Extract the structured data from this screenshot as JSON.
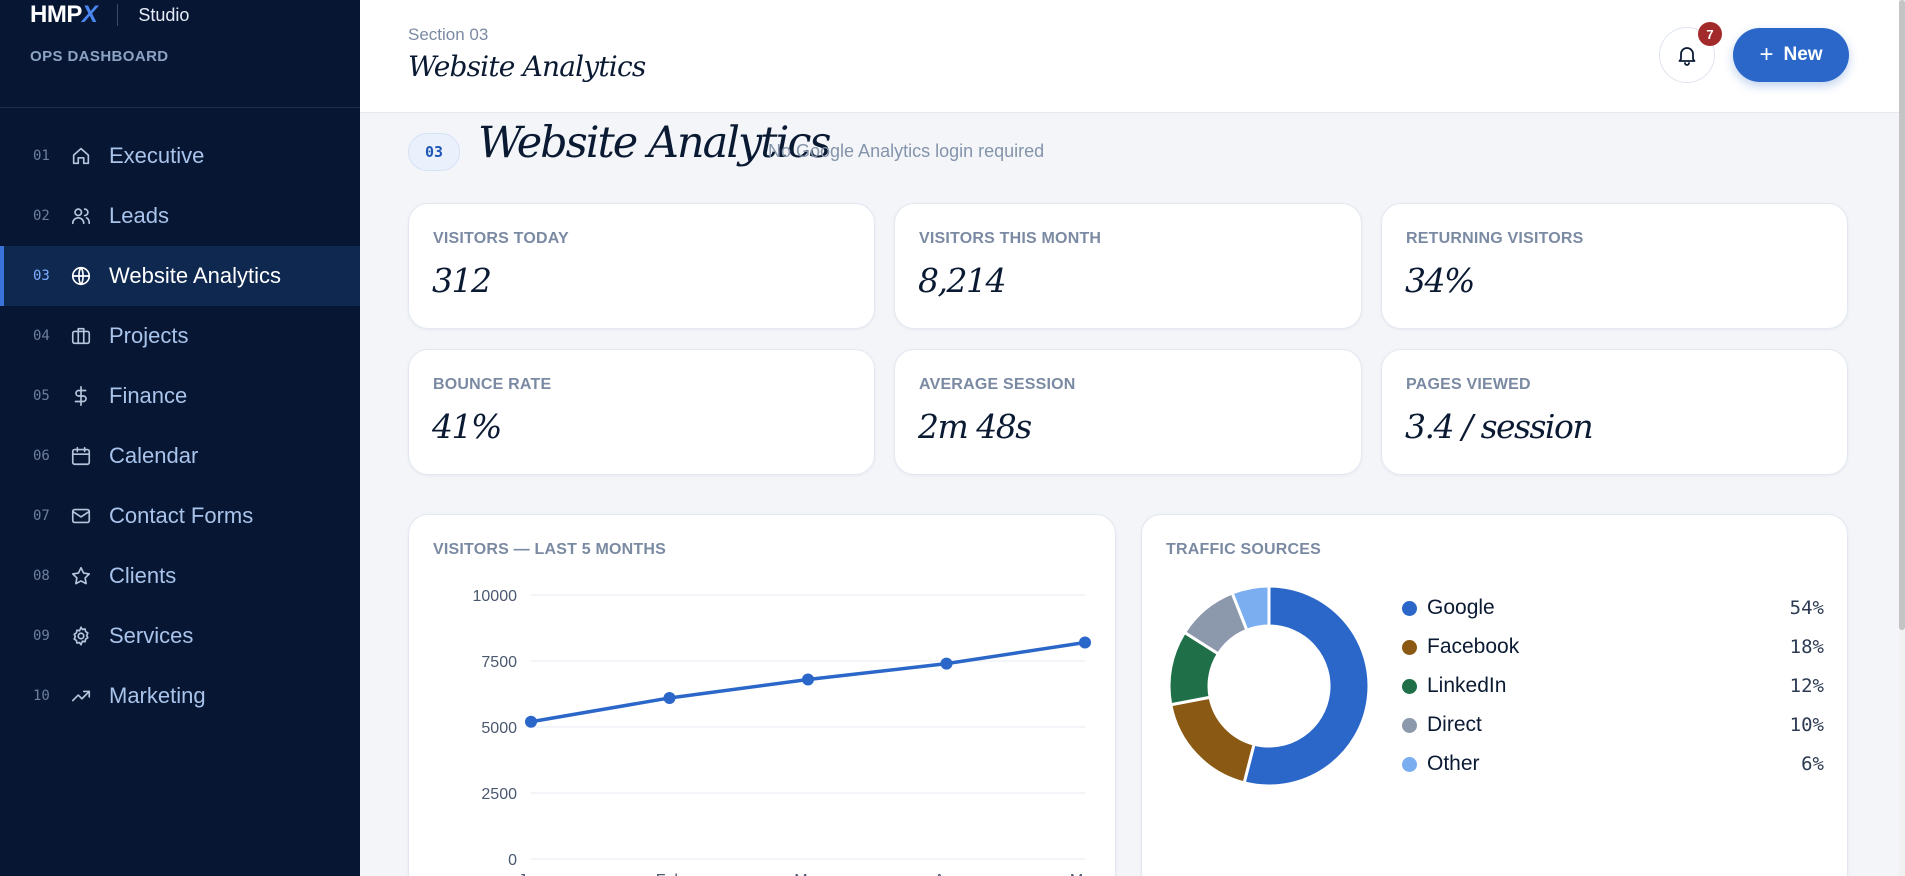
{
  "brand": {
    "logo_main": "HMP",
    "logo_x": "X",
    "studio": "Studio",
    "subtitle": "OPS DASHBOARD"
  },
  "nav": [
    {
      "num": "01",
      "label": "Executive",
      "icon": "home-icon",
      "active": false
    },
    {
      "num": "02",
      "label": "Leads",
      "icon": "users-icon",
      "active": false
    },
    {
      "num": "03",
      "label": "Website Analytics",
      "icon": "globe-icon",
      "active": true
    },
    {
      "num": "04",
      "label": "Projects",
      "icon": "briefcase-icon",
      "active": false
    },
    {
      "num": "05",
      "label": "Finance",
      "icon": "dollar-icon",
      "active": false
    },
    {
      "num": "06",
      "label": "Calendar",
      "icon": "calendar-icon",
      "active": false
    },
    {
      "num": "07",
      "label": "Contact Forms",
      "icon": "mail-icon",
      "active": false
    },
    {
      "num": "08",
      "label": "Clients",
      "icon": "star-icon",
      "active": false
    },
    {
      "num": "09",
      "label": "Services",
      "icon": "gear-icon",
      "active": false
    },
    {
      "num": "10",
      "label": "Marketing",
      "icon": "trending-icon",
      "active": false
    }
  ],
  "topbar": {
    "section": "Section 03",
    "title": "Website Analytics",
    "notifications": "7",
    "new_label": "New"
  },
  "page": {
    "badge": "03",
    "title": "Website Analytics",
    "subtitle": "No Google Analytics login required"
  },
  "stats": [
    {
      "label": "VISITORS TODAY",
      "value": "312"
    },
    {
      "label": "VISITORS THIS MONTH",
      "value": "8,214"
    },
    {
      "label": "RETURNING VISITORS",
      "value": "34%"
    },
    {
      "label": "BOUNCE RATE",
      "value": "41%"
    },
    {
      "label": "AVERAGE SESSION",
      "value": "2m 48s"
    },
    {
      "label": "PAGES VIEWED",
      "value": "3.4 / session"
    }
  ],
  "visitors_panel": {
    "title": "VISITORS — LAST 5 MONTHS"
  },
  "traffic_panel": {
    "title": "TRAFFIC SOURCES"
  },
  "colors": {
    "accent": "#2b67c9",
    "sidebar": "#071733",
    "badge": "#a32a2a"
  },
  "chart_data": [
    {
      "type": "line",
      "title": "VISITORS — LAST 5 MONTHS",
      "x": [
        "Jan",
        "Feb",
        "Mar",
        "Apr",
        "May"
      ],
      "series": [
        {
          "values": [
            5200,
            6100,
            6800,
            7400,
            8200
          ]
        }
      ],
      "ylim": [
        0,
        10000
      ],
      "yticks": [
        0,
        2500,
        5000,
        7500,
        10000
      ],
      "grid": true,
      "color": "#2b67c9"
    },
    {
      "type": "pie",
      "title": "TRAFFIC SOURCES",
      "donut": true,
      "labels": [
        "Google",
        "Facebook",
        "LinkedIn",
        "Direct",
        "Other"
      ],
      "values": [
        54,
        18,
        12,
        10,
        6
      ],
      "value_labels": [
        "54%",
        "18%",
        "12%",
        "10%",
        "6%"
      ],
      "colors": [
        "#2b67c9",
        "#8a5a14",
        "#1f7048",
        "#8c99ac",
        "#7aaef0"
      ],
      "legend": "right"
    }
  ]
}
